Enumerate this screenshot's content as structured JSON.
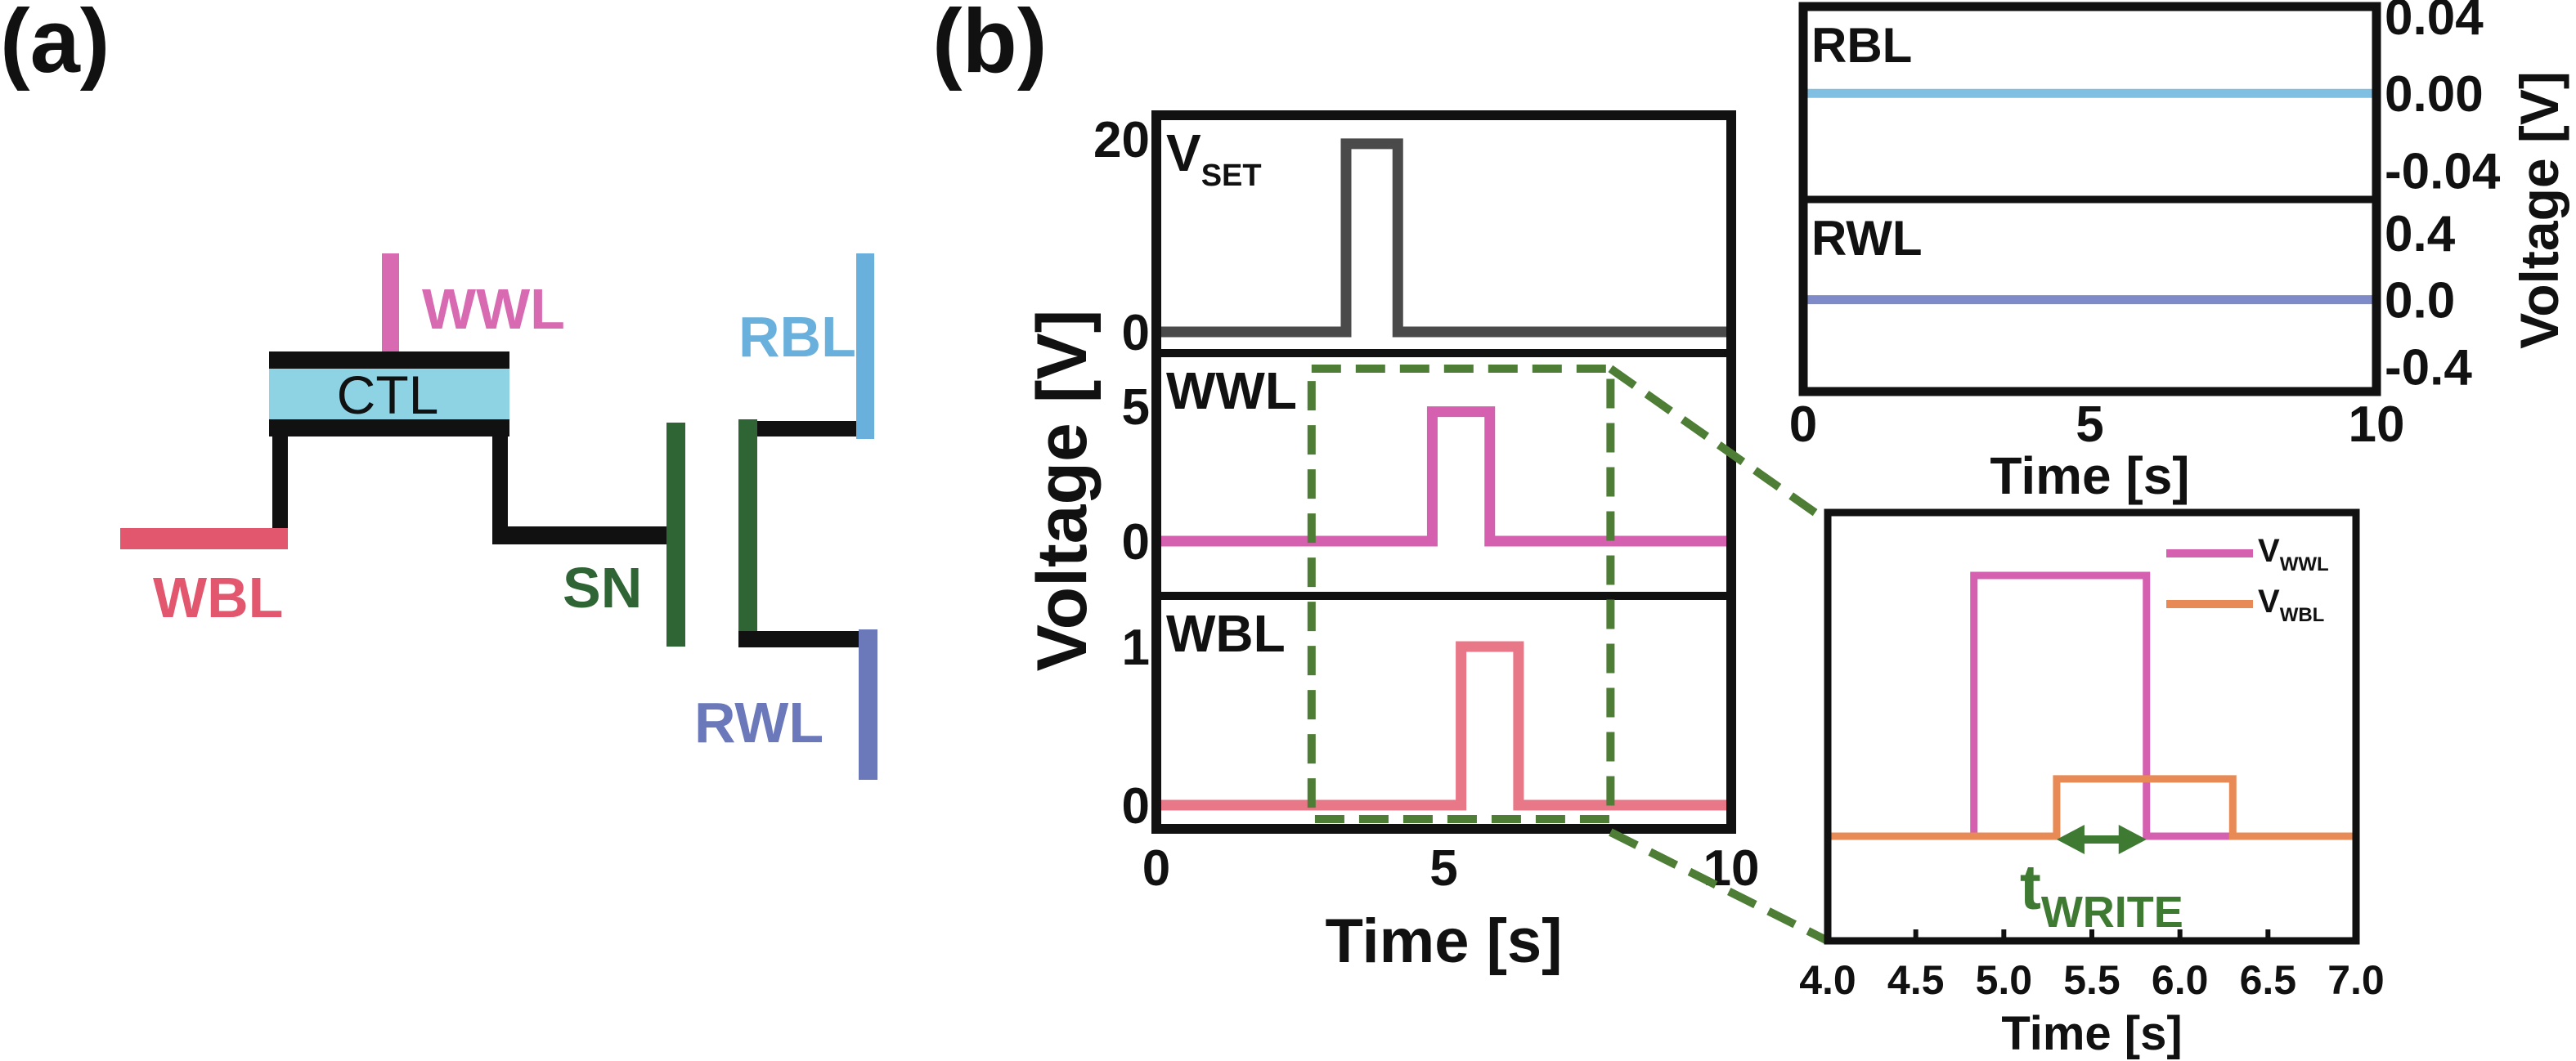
{
  "panel_labels": {
    "a": "(a)",
    "b": "(b)"
  },
  "diagram": {
    "labels": {
      "wwl": "WWL",
      "ctl": "CTL",
      "rbl": "RBL",
      "wbl": "WBL",
      "sn": "SN",
      "rwl": "RWL"
    },
    "colors": {
      "wwl": "#d86ab2",
      "ctl": "#8dd3e3",
      "rbl": "#6ab0dc",
      "wbl": "#e2566e",
      "sn": "#2f6535",
      "rwl": "#6b79bb",
      "wire": "#111111"
    }
  },
  "chart_data": [
    {
      "type": "line",
      "id": "write-pulses",
      "xlabel": "Time [s]",
      "ylabel": "Voltage [V]",
      "xlim": [
        0,
        10
      ],
      "xticks": [
        "0",
        "5",
        "10"
      ],
      "grid": false,
      "subplots": [
        {
          "label": "V",
          "label_sub": "SET",
          "color": "#4a4a4a",
          "yticks": [
            "0",
            "20"
          ],
          "ytick_values": [
            0,
            20
          ],
          "x": [
            0,
            3.3,
            3.3,
            4.2,
            4.2,
            10
          ],
          "y": [
            0,
            0,
            19.5,
            19.5,
            0,
            0
          ]
        },
        {
          "label": "WWL",
          "label_sub": "",
          "color": "#d660b0",
          "yticks": [
            "0",
            "5"
          ],
          "ytick_values": [
            0,
            5
          ],
          "x": [
            0,
            4.8,
            4.8,
            5.8,
            5.8,
            10
          ],
          "y": [
            0,
            0,
            4.8,
            4.8,
            0,
            0
          ]
        },
        {
          "label": "WBL",
          "label_sub": "",
          "color": "#e87888",
          "yticks": [
            "0",
            "1"
          ],
          "ytick_values": [
            0,
            1
          ],
          "x": [
            0,
            5.3,
            5.3,
            6.3,
            6.3,
            10
          ],
          "y": [
            0,
            0,
            1,
            1,
            0,
            0
          ]
        }
      ],
      "zoom_box": {
        "x_range": [
          2.7,
          7.9
        ],
        "color": "#4e7d35"
      }
    },
    {
      "type": "line",
      "id": "read-lines",
      "xlabel": "Time [s]",
      "ylabel": "Voltage [V]",
      "xlim": [
        0,
        10
      ],
      "xticks": [
        "0",
        "5",
        "10"
      ],
      "grid": false,
      "subplots": [
        {
          "label": "RBL",
          "color": "#7fbfe2",
          "yticks": [
            "0.04",
            "0.00",
            "-0.04"
          ],
          "ytick_values": [
            0.04,
            0,
            -0.04
          ],
          "ylim": [
            -0.055,
            0.045
          ],
          "x": [
            0,
            10
          ],
          "y": [
            0,
            0
          ]
        },
        {
          "label": "RWL",
          "color": "#7f8bc9",
          "yticks": [
            "0.4",
            "0.0",
            "-0.4"
          ],
          "ytick_values": [
            0.4,
            0,
            -0.4
          ],
          "ylim": [
            -0.55,
            0.6
          ],
          "x": [
            0,
            10
          ],
          "y": [
            0,
            0
          ]
        }
      ]
    },
    {
      "type": "line",
      "id": "zoomed-write",
      "xlabel": "Time [s]",
      "xlim": [
        4.0,
        7.0
      ],
      "xticks": [
        "4.0",
        "4.5",
        "5.0",
        "5.5",
        "6.0",
        "6.5",
        "7.0"
      ],
      "grid": false,
      "legend": "top-right",
      "series": [
        {
          "name": "V",
          "name_sub": "WWL",
          "color": "#d660b0",
          "x": [
            4.0,
            4.83,
            4.83,
            5.81,
            5.81,
            7.0
          ],
          "y": [
            0,
            0,
            1,
            1,
            0,
            0
          ]
        },
        {
          "name": "V",
          "name_sub": "WBL",
          "color": "#e88a55",
          "x": [
            4.0,
            5.3,
            5.3,
            6.3,
            6.3,
            7.0
          ],
          "y": [
            0,
            0,
            0.22,
            0.22,
            0,
            0
          ]
        }
      ],
      "annotation": {
        "text": "t",
        "text_sub": "WRITE",
        "x_range": [
          5.3,
          5.81
        ],
        "color": "#3f7a32"
      }
    }
  ]
}
